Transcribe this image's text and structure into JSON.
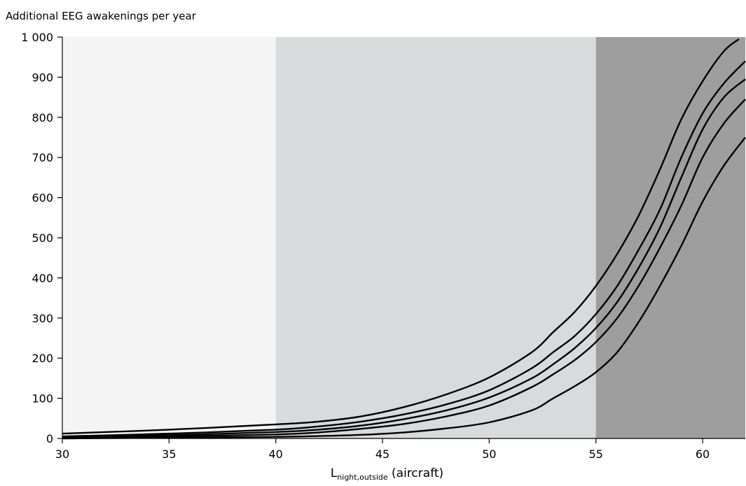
{
  "chart_data": {
    "type": "line",
    "ylabel": "Additional EEG awakenings per year",
    "xlabel": {
      "main": "L",
      "sub": "night,outside",
      "suffix": "(aircraft)"
    },
    "xlim": [
      30,
      62
    ],
    "ylim": [
      0,
      1000
    ],
    "xticks": [
      30,
      35,
      40,
      45,
      50,
      55,
      60
    ],
    "xtick_labels": [
      "30",
      "35",
      "40",
      "45",
      "50",
      "55",
      "60"
    ],
    "yticks": [
      0,
      100,
      200,
      300,
      400,
      500,
      600,
      700,
      800,
      900,
      1000
    ],
    "ytick_labels": [
      "0",
      "100",
      "200",
      "300",
      "400",
      "500",
      "600",
      "700",
      "800",
      "900",
      "1 000"
    ],
    "grid": false,
    "bands": [
      {
        "x0": 30,
        "x1": 40,
        "color": "#f4f4f4"
      },
      {
        "x0": 40,
        "x1": 55,
        "color": "#d9dadc"
      },
      {
        "x0": 55,
        "x1": 62,
        "color": "#9e9e9e"
      }
    ],
    "line_color": "#000000",
    "series": [
      {
        "x": [
          30,
          35,
          40,
          42,
          44,
          46,
          48,
          50,
          52,
          53,
          54,
          55,
          56,
          57,
          58,
          59,
          60,
          61,
          61.7
        ],
        "y": [
          12,
          22,
          35,
          42,
          55,
          78,
          110,
          152,
          215,
          265,
          315,
          380,
          460,
          555,
          670,
          795,
          890,
          965,
          995
        ]
      },
      {
        "x": [
          30,
          35,
          40,
          42,
          44,
          46,
          48,
          50,
          52,
          53,
          54,
          55,
          56,
          57,
          58,
          59,
          60,
          61,
          62
        ],
        "y": [
          5,
          12,
          22,
          30,
          42,
          60,
          85,
          120,
          175,
          215,
          255,
          310,
          380,
          470,
          570,
          700,
          810,
          885,
          940
        ]
      },
      {
        "x": [
          30,
          35,
          40,
          42,
          44,
          46,
          48,
          50,
          52,
          53,
          54,
          55,
          56,
          57,
          58,
          59,
          60,
          61,
          62
        ],
        "y": [
          3,
          8,
          16,
          22,
          32,
          48,
          70,
          102,
          150,
          185,
          225,
          275,
          340,
          425,
          525,
          650,
          770,
          850,
          895
        ]
      },
      {
        "x": [
          30,
          35,
          40,
          42,
          44,
          46,
          48,
          50,
          52,
          53,
          54,
          55,
          56,
          57,
          58,
          59,
          60,
          61,
          62
        ],
        "y": [
          2,
          5,
          10,
          15,
          24,
          36,
          55,
          82,
          128,
          160,
          195,
          240,
          300,
          380,
          475,
          580,
          700,
          785,
          845
        ]
      },
      {
        "x": [
          30,
          35,
          40,
          42,
          44,
          46,
          48,
          50,
          52,
          53,
          54,
          55,
          56,
          57,
          58,
          59,
          60,
          61,
          62
        ],
        "y": [
          0,
          2,
          4,
          6,
          9,
          15,
          25,
          40,
          70,
          100,
          130,
          165,
          215,
          290,
          380,
          480,
          590,
          680,
          750
        ]
      }
    ]
  }
}
